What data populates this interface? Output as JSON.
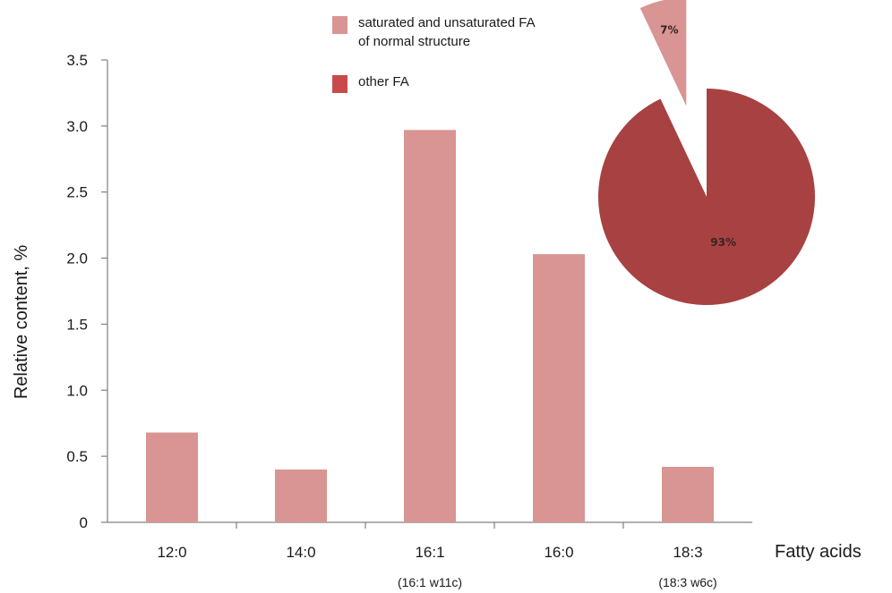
{
  "chart_data": {
    "type": "bar",
    "categories": [
      "12:0",
      "14:0",
      "16:1",
      "16:0",
      "18:3"
    ],
    "category_sublabels": [
      "",
      "",
      "(16:1 w11c)",
      "",
      "(18:3 w6c)"
    ],
    "values": [
      0.68,
      0.4,
      2.97,
      2.03,
      0.42
    ],
    "xlabel": "Fatty acids",
    "ylabel": "Relative content, %",
    "ylim": [
      0,
      3.5
    ],
    "yticks": [
      {
        "value": 0,
        "label": "0"
      },
      {
        "value": 0.5,
        "label": "0.5"
      },
      {
        "value": 1.0,
        "label": "1.0"
      },
      {
        "value": 1.5,
        "label": "1.5"
      },
      {
        "value": 2.0,
        "label": "2.0"
      },
      {
        "value": 2.5,
        "label": "2.5"
      },
      {
        "value": 3.0,
        "label": "3.0"
      },
      {
        "value": 3.5,
        "label": "3.5"
      }
    ],
    "grid": false,
    "bar_color": "#d89593",
    "legend": {
      "placement": "top-center",
      "entries": [
        {
          "label_lines": [
            "saturated and unsaturated FA",
            "of normal structure"
          ],
          "color": "#d89593"
        },
        {
          "label_lines": [
            "other FA"
          ],
          "color": "#c94a4a"
        }
      ]
    },
    "inset_pie": {
      "placement": "top-right",
      "slices": [
        {
          "label": "7%",
          "value": 7,
          "color": "#d89593",
          "exploded": true
        },
        {
          "label": "93%",
          "value": 93,
          "color": "#a84141",
          "exploded": false
        }
      ]
    }
  }
}
